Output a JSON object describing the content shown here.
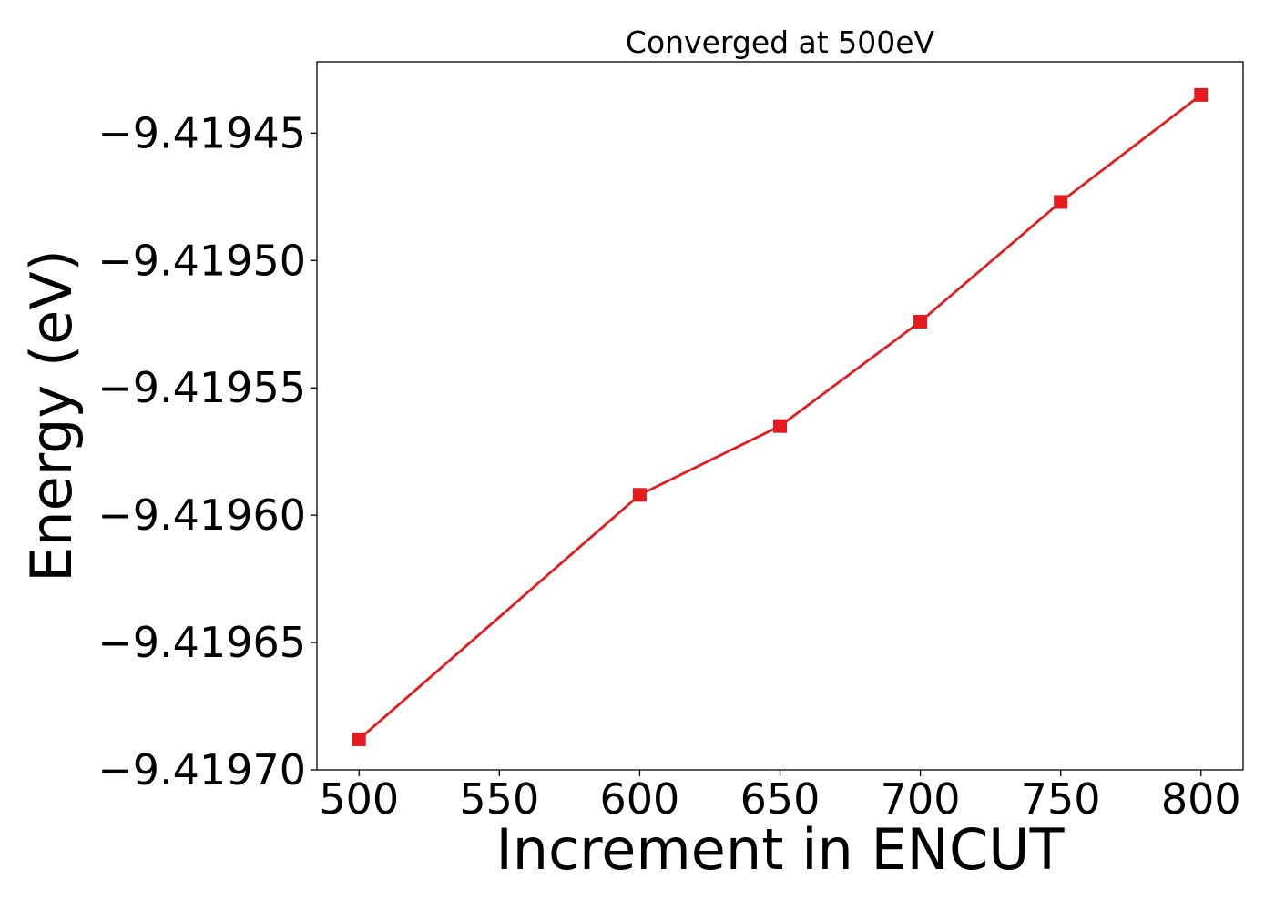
{
  "chart_data": {
    "type": "line",
    "title": "Converged at 500eV",
    "xlabel": "Increment in ENCUT",
    "ylabel": "Energy (eV)",
    "x": [
      500,
      600,
      650,
      700,
      750,
      800
    ],
    "series": [
      {
        "values": [
          -9.419688,
          -9.419592,
          -9.419565,
          -9.419524,
          -9.419477,
          -9.419435
        ],
        "color": "#e41a1c",
        "marker": "square"
      }
    ],
    "xticks": [
      500,
      550,
      600,
      650,
      700,
      750,
      800
    ],
    "xtick_labels": [
      "500",
      "550",
      "600",
      "650",
      "700",
      "750",
      "800"
    ],
    "yticks": [
      -9.41945,
      -9.4195,
      -9.41955,
      -9.4196,
      -9.41965,
      -9.4197
    ],
    "ytick_labels": [
      "−9.41945",
      "−9.41950",
      "−9.41955",
      "−9.41960",
      "−9.41965",
      "−9.41970"
    ],
    "xlim": [
      485,
      815
    ],
    "ylim": [
      -9.4197,
      -9.419422
    ],
    "grid": false,
    "legend": false
  }
}
